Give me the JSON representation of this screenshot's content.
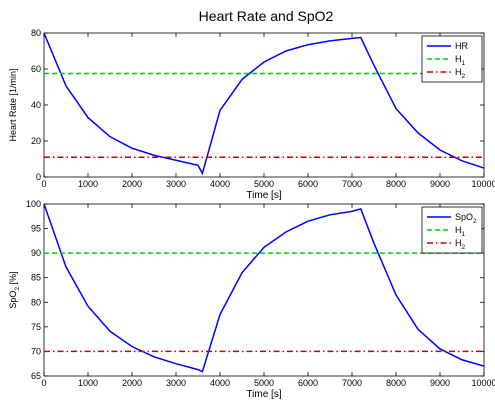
{
  "chart_data": [
    {
      "type": "line",
      "title": "Heart Rate and SpO2",
      "xlabel": "Time [s]",
      "ylabel": "Heart Rate [1/min]",
      "xlim": [
        0,
        10000
      ],
      "ylim": [
        0,
        80
      ],
      "xticks": [
        "0",
        "1000",
        "2000",
        "3000",
        "4000",
        "5000",
        "6000",
        "7000",
        "8000",
        "9000",
        "10000"
      ],
      "yticks": [
        "0",
        "20",
        "40",
        "60",
        "80"
      ],
      "legend_position": "top-right",
      "legend": [
        {
          "base": "HR",
          "sub": ""
        },
        {
          "base": "H",
          "sub": "1"
        },
        {
          "base": "H",
          "sub": "2"
        }
      ],
      "series": [
        {
          "name": "HR",
          "color": "#0000ff",
          "style": "solid",
          "x": [
            0,
            500,
            1000,
            1500,
            2000,
            2500,
            3000,
            3500,
            3600,
            4000,
            4500,
            5000,
            5500,
            6000,
            6500,
            7000,
            7200,
            7500,
            8000,
            8500,
            9000,
            9500,
            10000
          ],
          "y": [
            80,
            50.6,
            33,
            22.4,
            16,
            12.1,
            9.3,
            6.5,
            2,
            37,
            54.2,
            63.9,
            70,
            73.5,
            75.6,
            77,
            77.5,
            62,
            38,
            24.5,
            15,
            9,
            5
          ]
        },
        {
          "name": "H1",
          "color": "#00cc00",
          "style": "dashed",
          "x": [
            0,
            10000
          ],
          "y": [
            57.5,
            57.5
          ]
        },
        {
          "name": "H2",
          "color": "#cc0000",
          "style": "dashdot",
          "x": [
            0,
            10000
          ],
          "y": [
            11,
            11
          ]
        }
      ]
    },
    {
      "type": "line",
      "title": "",
      "xlabel": "Time [s]",
      "ylabel": {
        "base": "SpO",
        "sub": "2",
        "suffix": " [%]"
      },
      "xlim": [
        0,
        10000
      ],
      "ylim": [
        65,
        100
      ],
      "xticks": [
        "0",
        "1000",
        "2000",
        "3000",
        "4000",
        "5000",
        "6000",
        "7000",
        "8000",
        "9000",
        "10000"
      ],
      "yticks": [
        "65",
        "70",
        "75",
        "80",
        "85",
        "90",
        "95",
        "100"
      ],
      "legend_position": "top-right",
      "legend": [
        {
          "base": "SpO",
          "sub": "2"
        },
        {
          "base": "H",
          "sub": "1"
        },
        {
          "base": "H",
          "sub": "2"
        }
      ],
      "series": [
        {
          "name": "SpO2",
          "color": "#0000ff",
          "style": "solid",
          "x": [
            0,
            500,
            1000,
            1500,
            2000,
            2500,
            3000,
            3500,
            3600,
            4000,
            4500,
            5000,
            5500,
            6000,
            6500,
            7000,
            7200,
            7500,
            8000,
            8500,
            9000,
            9500,
            10000
          ],
          "y": [
            100,
            87.2,
            79.2,
            74.1,
            71,
            68.9,
            67.5,
            66.3,
            65.9,
            77.5,
            86,
            91.2,
            94.3,
            96.5,
            97.8,
            98.5,
            99,
            92,
            81.5,
            74.5,
            70.5,
            68.3,
            67
          ]
        },
        {
          "name": "H1",
          "color": "#00cc00",
          "style": "dashed",
          "x": [
            0,
            10000
          ],
          "y": [
            90,
            90
          ]
        },
        {
          "name": "H2",
          "color": "#cc0000",
          "style": "dashdot",
          "x": [
            0,
            10000
          ],
          "y": [
            70,
            70
          ]
        }
      ]
    }
  ]
}
